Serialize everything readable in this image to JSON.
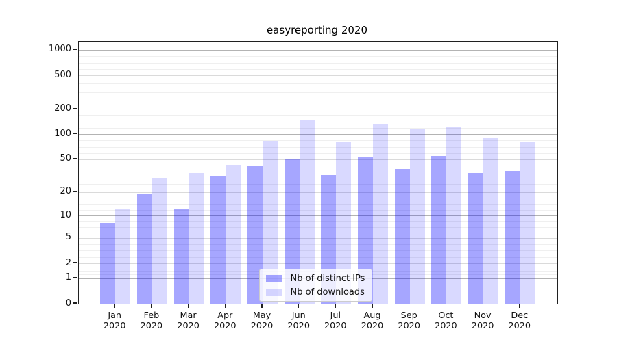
{
  "chart_data": {
    "type": "bar",
    "title": "easyreporting 2020",
    "categories": [
      "Jan",
      "Feb",
      "Mar",
      "Apr",
      "May",
      "Jun",
      "Jul",
      "Aug",
      "Sep",
      "Oct",
      "Nov",
      "Dec"
    ],
    "category_year_suffix": "2020",
    "series": [
      {
        "name": "Nb of distinct IPs",
        "color": "rgba(0,0,255,0.35)",
        "values": [
          8,
          19,
          12,
          31,
          41,
          50,
          32,
          53,
          38,
          55,
          34,
          36
        ]
      },
      {
        "name": "Nb of downloads",
        "color": "rgba(0,0,255,0.15)",
        "values": [
          12,
          30,
          34,
          43,
          83,
          150,
          81,
          133,
          117,
          120,
          90,
          80
        ]
      }
    ],
    "yscale": "log1p",
    "yticks": [
      0,
      1,
      2,
      5,
      10,
      20,
      50,
      100,
      200,
      500,
      1000
    ],
    "ylim": [
      0,
      1260
    ],
    "grid": {
      "horizontal": true,
      "minor_divisions_per_interval": 4
    },
    "legend": {
      "position": "lower-center"
    }
  }
}
